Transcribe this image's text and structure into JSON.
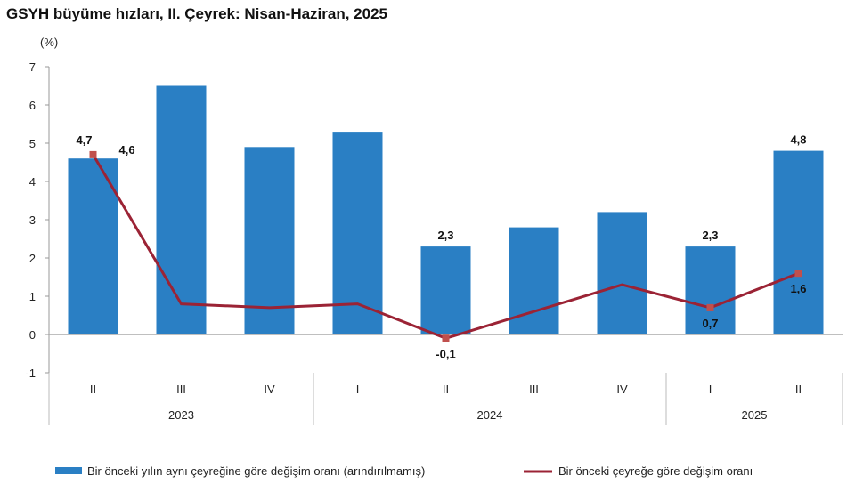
{
  "chart_data": {
    "type": "bar",
    "title": "GSYH büyüme hızları, II. Çeyrek: Nisan-Haziran, 2025",
    "ylabel": "(%)",
    "ylim": [
      -1,
      7
    ],
    "yticks": [
      -1,
      0,
      1,
      2,
      3,
      4,
      5,
      6,
      7
    ],
    "categories": [
      "II",
      "III",
      "IV",
      "I",
      "II",
      "III",
      "IV",
      "I",
      "II"
    ],
    "years": [
      {
        "label": "2023",
        "span": 3
      },
      {
        "label": "2024",
        "span": 4
      },
      {
        "label": "2025",
        "span": 2
      }
    ],
    "legend_position": "bottom",
    "series": [
      {
        "name": "Bir önceki yılın aynı çeyreğine göre değişim oranı (arındırılmamış)",
        "type": "bar",
        "color": "#2a7fc4",
        "values": [
          4.6,
          6.5,
          4.9,
          5.3,
          2.3,
          2.8,
          3.2,
          2.3,
          4.8
        ],
        "labels": [
          "4,6",
          "",
          "",
          "",
          "2,3",
          "",
          "",
          "2,3",
          "4,8"
        ]
      },
      {
        "name": "Bir önceki çeyreğe göre değişim oranı",
        "type": "line",
        "color": "#9b2335",
        "values": [
          4.7,
          0.8,
          0.7,
          0.8,
          -0.1,
          0.6,
          1.3,
          0.7,
          1.6
        ],
        "labels": [
          "4,7",
          "",
          "",
          "",
          "-0,1",
          "",
          "",
          "0,7",
          "1,6"
        ]
      }
    ]
  }
}
